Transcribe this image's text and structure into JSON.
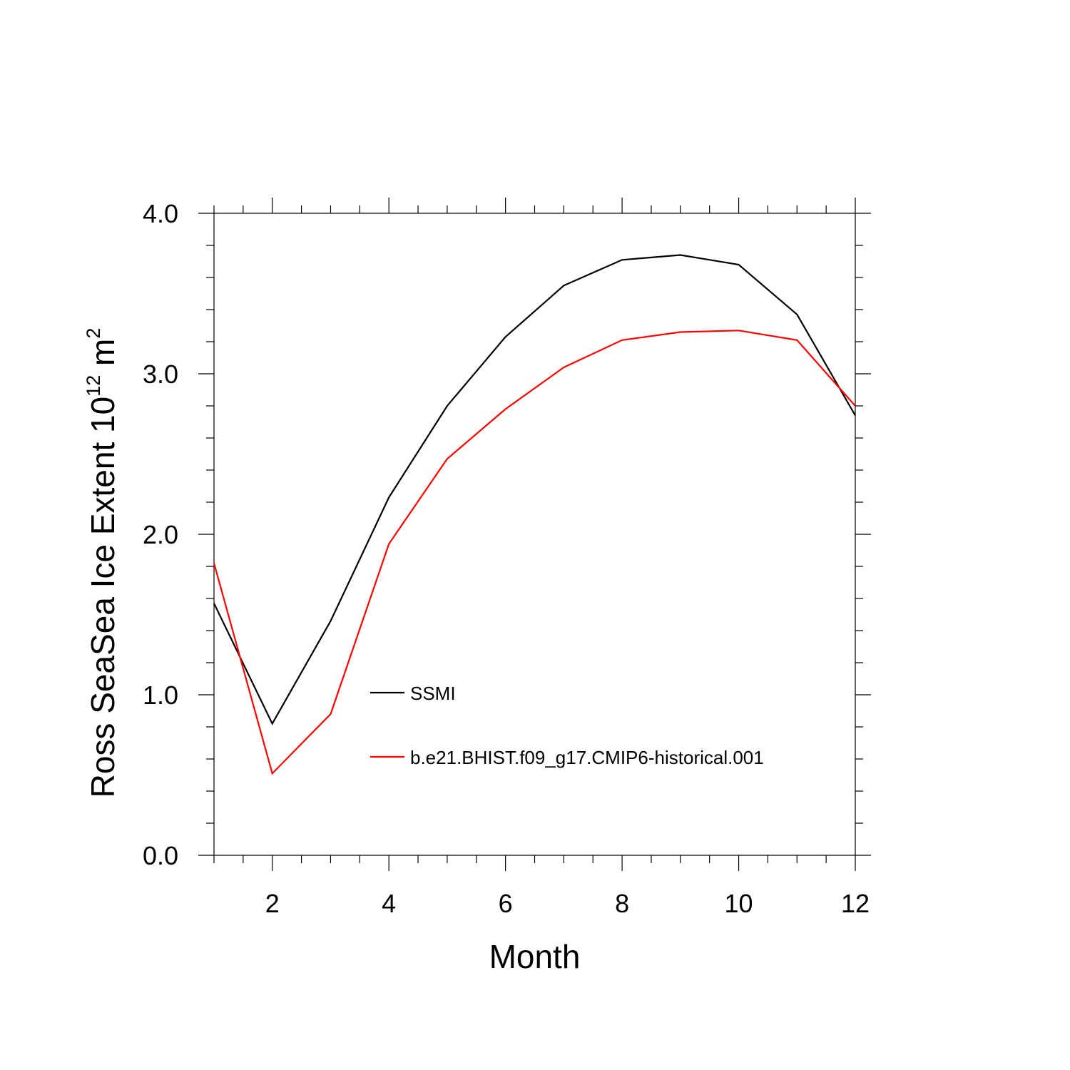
{
  "chart_data": {
    "type": "line",
    "xlabel": "Month",
    "ylabel": {
      "prefix": "Ross SeaSea Ice Extent 10",
      "exponent1": "12",
      "unit": " m",
      "exponent2": "2"
    },
    "xlim": [
      1,
      12
    ],
    "ylim": [
      0,
      4
    ],
    "x_ticks": [
      2,
      4,
      6,
      8,
      10,
      12
    ],
    "x_tick_labels": [
      "2",
      "4",
      "6",
      "8",
      "10",
      "12"
    ],
    "y_ticks": [
      0,
      1,
      2,
      3,
      4
    ],
    "y_tick_labels": [
      "0.0",
      "1.0",
      "2.0",
      "3.0",
      "4.0"
    ],
    "x": [
      1,
      2,
      3,
      4,
      5,
      6,
      7,
      8,
      9,
      10,
      11,
      12
    ],
    "series": [
      {
        "name": "SSMI",
        "color": "#000000",
        "values": [
          1.57,
          0.82,
          1.46,
          2.23,
          2.8,
          3.23,
          3.55,
          3.71,
          3.74,
          3.68,
          3.37,
          2.74
        ]
      },
      {
        "name": "b.e21.BHIST.f09_g17.CMIP6-historical.001",
        "color": "#ff0000",
        "values": [
          1.82,
          0.51,
          0.88,
          1.94,
          2.47,
          2.78,
          3.04,
          3.21,
          3.26,
          3.27,
          3.21,
          2.8
        ]
      }
    ],
    "grid": false,
    "legend_position": "inside-center"
  }
}
